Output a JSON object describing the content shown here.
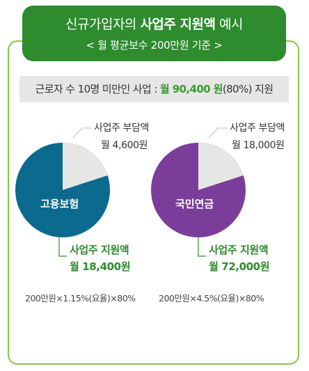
{
  "header": {
    "title_prefix": "신규가입자의 ",
    "title_bold": "사업주 지원액",
    "title_suffix": " 예시",
    "subtitle": "< 월 평균보수 200만원 기준 >"
  },
  "band": {
    "prefix": "근로자 수 10명 미만인 사업 : ",
    "amount": "월 90,400 원",
    "suffix": "(80%) 지원"
  },
  "colors": {
    "employment": "#0b6a8e",
    "pension": "#7a3e9a",
    "slice": "#e6e6e6",
    "green": "#2e8b2e"
  },
  "charts": [
    {
      "name": "고용보험",
      "employer_label": "사업주 부담액",
      "employer_amount": "월 4,600원",
      "support_label": "사업주 지원액",
      "support_amount": "월 18,400원",
      "formula": "200만원×1.15%(요율)×80%"
    },
    {
      "name": "국민연금",
      "employer_label": "사업주 부담액",
      "employer_amount": "월 18,000원",
      "support_label": "사업주 지원액",
      "support_amount": "월 72,000원",
      "formula": "200만원×4.5%(요율)×80%"
    }
  ],
  "chart_data": {
    "type": "pie",
    "series": [
      {
        "name": "고용보험",
        "values": [
          4600,
          18400
        ]
      },
      {
        "name": "국민연금",
        "values": [
          18000,
          72000
        ]
      }
    ],
    "categories": [
      "사업주 부담액",
      "사업주 지원액"
    ]
  }
}
